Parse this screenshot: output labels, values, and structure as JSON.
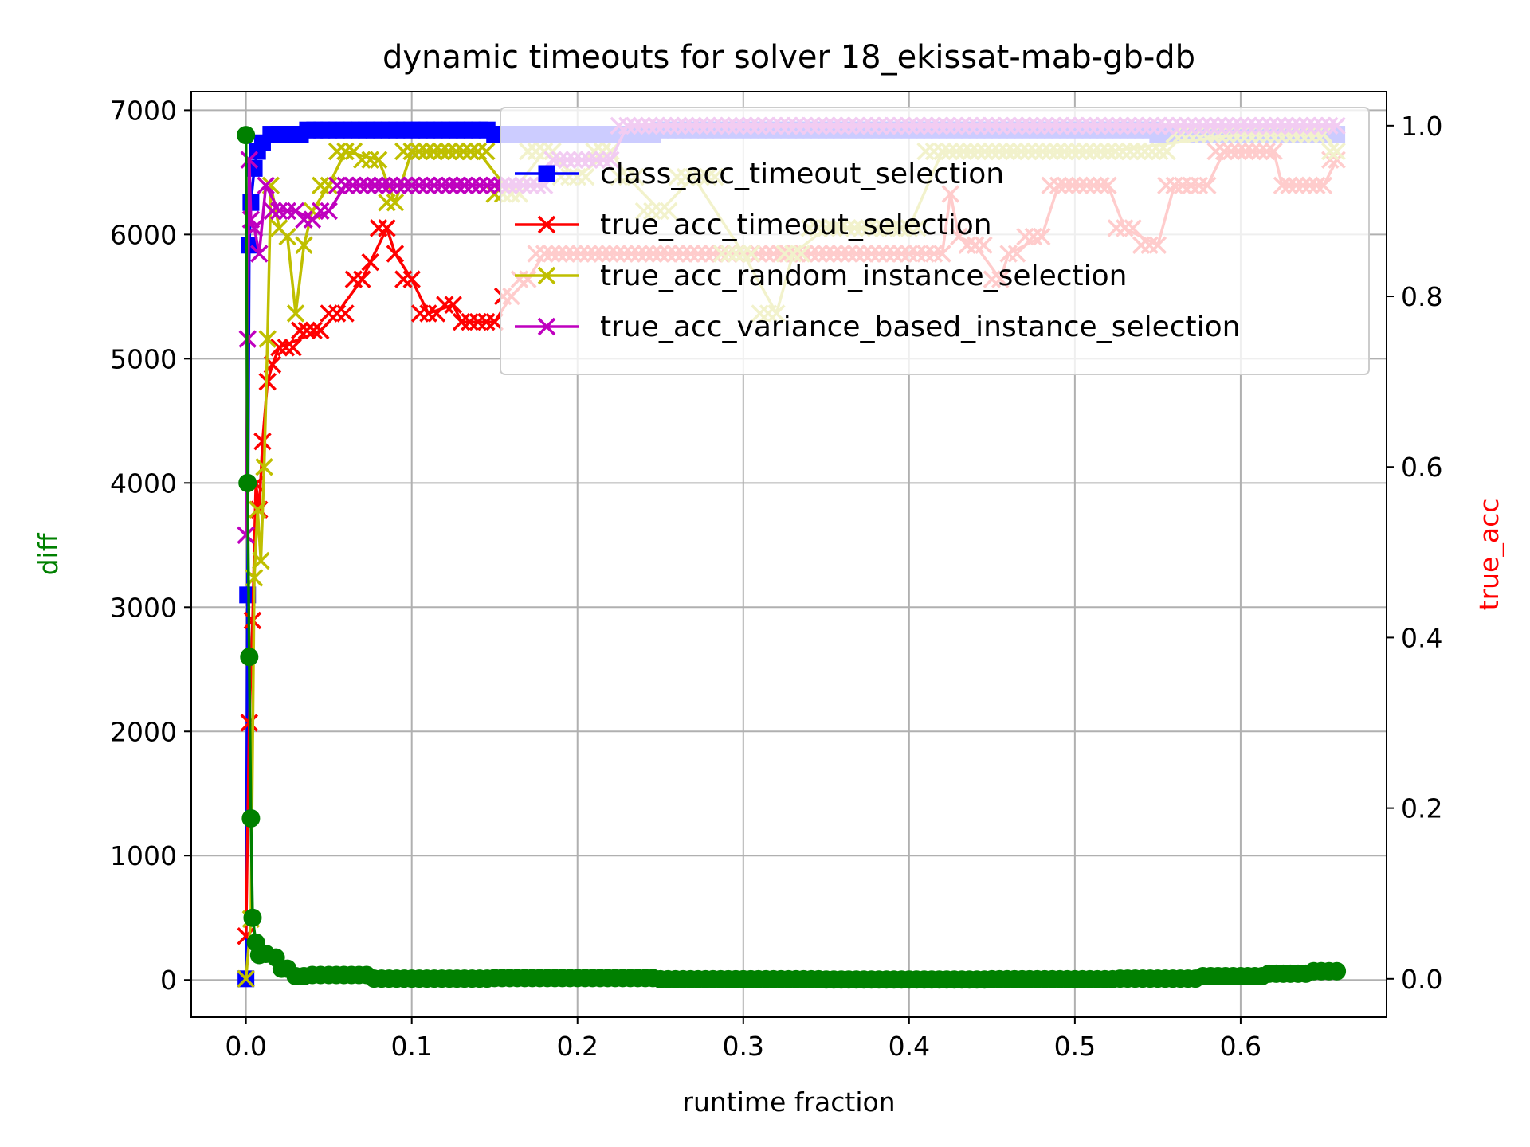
{
  "chart_data": {
    "type": "line",
    "title": "dynamic timeouts for solver 18_ekissat-mab-gb-db",
    "xlabel": "runtime fraction",
    "ylabel_left": "diff",
    "ylabel_right": "true_acc",
    "xlim": [
      -0.033,
      0.688
    ],
    "ylim_left": [
      -300,
      7150
    ],
    "ylim_right": [
      -0.045,
      1.04
    ],
    "xticks": [
      "0.0",
      "0.1",
      "0.2",
      "0.3",
      "0.4",
      "0.5",
      "0.6"
    ],
    "xtick_values": [
      0,
      0.1,
      0.2,
      0.3,
      0.4,
      0.5,
      0.6
    ],
    "yticks_left": [
      "0",
      "1000",
      "2000",
      "3000",
      "4000",
      "5000",
      "6000",
      "7000"
    ],
    "ytick_values_left": [
      0,
      1000,
      2000,
      3000,
      4000,
      5000,
      6000,
      7000
    ],
    "yticks_right": [
      "0.0",
      "0.2",
      "0.4",
      "0.6",
      "0.8",
      "1.0"
    ],
    "ytick_values_right": [
      0,
      0.2,
      0.4,
      0.6,
      0.8,
      1.0
    ],
    "grid": true,
    "legend_position": "upper-right",
    "legend": [
      "class_acc_timeout_selection",
      "true_acc_timeout_selection",
      "true_acc_random_instance_selection",
      "true_acc_variance_based_instance_selection"
    ],
    "series": [
      {
        "name": "class_acc_timeout_selection",
        "axis": "right",
        "color": "#0000ff",
        "marker": "square",
        "points": [
          [
            0,
            0
          ],
          [
            0.001,
            0.45
          ],
          [
            0.002,
            0.86
          ],
          [
            0.003,
            0.91
          ],
          [
            0.005,
            0.95
          ],
          [
            0.007,
            0.97
          ],
          [
            0.01,
            0.98
          ],
          [
            0.02,
            0.99
          ],
          [
            0.05,
            0.995
          ],
          [
            0.1,
            0.995
          ],
          [
            0.2,
            0.99
          ],
          [
            0.3,
            0.995
          ],
          [
            0.4,
            0.995
          ],
          [
            0.5,
            0.995
          ],
          [
            0.6,
            0.99
          ],
          [
            0.658,
            0.99
          ]
        ]
      },
      {
        "name": "true_acc_timeout_selection",
        "axis": "right",
        "color": "#ff0000",
        "marker": "x",
        "points": [
          [
            0,
            0.05
          ],
          [
            0.002,
            0.3
          ],
          [
            0.004,
            0.42
          ],
          [
            0.006,
            0.58
          ],
          [
            0.008,
            0.55
          ],
          [
            0.01,
            0.63
          ],
          [
            0.013,
            0.7
          ],
          [
            0.016,
            0.72
          ],
          [
            0.02,
            0.74
          ],
          [
            0.045,
            0.76
          ],
          [
            0.055,
            0.78
          ],
          [
            0.07,
            0.82
          ],
          [
            0.075,
            0.84
          ],
          [
            0.085,
            0.88
          ],
          [
            0.09,
            0.85
          ],
          [
            0.1,
            0.82
          ],
          [
            0.11,
            0.78
          ],
          [
            0.125,
            0.79
          ],
          [
            0.13,
            0.77
          ],
          [
            0.15,
            0.77
          ],
          [
            0.16,
            0.8
          ],
          [
            0.17,
            0.82
          ],
          [
            0.18,
            0.85
          ],
          [
            0.25,
            0.85
          ],
          [
            0.3,
            0.85
          ],
          [
            0.35,
            0.85
          ],
          [
            0.4,
            0.85
          ],
          [
            0.42,
            0.85
          ],
          [
            0.425,
            0.92
          ],
          [
            0.43,
            0.87
          ],
          [
            0.44,
            0.86
          ],
          [
            0.455,
            0.82
          ],
          [
            0.46,
            0.85
          ],
          [
            0.48,
            0.87
          ],
          [
            0.49,
            0.93
          ],
          [
            0.52,
            0.93
          ],
          [
            0.53,
            0.88
          ],
          [
            0.55,
            0.86
          ],
          [
            0.56,
            0.93
          ],
          [
            0.58,
            0.93
          ],
          [
            0.59,
            0.97
          ],
          [
            0.62,
            0.97
          ],
          [
            0.625,
            0.93
          ],
          [
            0.65,
            0.93
          ],
          [
            0.658,
            0.96
          ]
        ]
      },
      {
        "name": "true_acc_random_instance_selection",
        "axis": "right",
        "color": "#bfbf00",
        "marker": "x",
        "points": [
          [
            0,
            0
          ],
          [
            0.003,
            0.07
          ],
          [
            0.005,
            0.47
          ],
          [
            0.007,
            0.55
          ],
          [
            0.009,
            0.49
          ],
          [
            0.011,
            0.6
          ],
          [
            0.013,
            0.75
          ],
          [
            0.015,
            0.93
          ],
          [
            0.02,
            0.88
          ],
          [
            0.025,
            0.87
          ],
          [
            0.03,
            0.78
          ],
          [
            0.035,
            0.86
          ],
          [
            0.04,
            0.9
          ],
          [
            0.05,
            0.93
          ],
          [
            0.06,
            0.97
          ],
          [
            0.08,
            0.96
          ],
          [
            0.09,
            0.91
          ],
          [
            0.1,
            0.97
          ],
          [
            0.14,
            0.97
          ],
          [
            0.16,
            0.92
          ],
          [
            0.18,
            0.97
          ],
          [
            0.2,
            0.94
          ],
          [
            0.22,
            0.97
          ],
          [
            0.23,
            0.94
          ],
          [
            0.25,
            0.9
          ],
          [
            0.27,
            0.94
          ],
          [
            0.3,
            0.85
          ],
          [
            0.32,
            0.78
          ],
          [
            0.33,
            0.85
          ],
          [
            0.35,
            0.88
          ],
          [
            0.38,
            0.88
          ],
          [
            0.4,
            0.88
          ],
          [
            0.42,
            0.97
          ],
          [
            0.45,
            0.97
          ],
          [
            0.52,
            0.97
          ],
          [
            0.6,
            0.99
          ],
          [
            0.65,
            0.99
          ],
          [
            0.658,
            0.97
          ]
        ]
      },
      {
        "name": "true_acc_variance_based_instance_selection",
        "axis": "right",
        "color": "#bf00bf",
        "marker": "x",
        "points": [
          [
            0,
            0.52
          ],
          [
            0.001,
            0.75
          ],
          [
            0.002,
            0.96
          ],
          [
            0.003,
            0.89
          ],
          [
            0.005,
            0.88
          ],
          [
            0.008,
            0.85
          ],
          [
            0.012,
            0.93
          ],
          [
            0.02,
            0.9
          ],
          [
            0.03,
            0.9
          ],
          [
            0.04,
            0.89
          ],
          [
            0.05,
            0.9
          ],
          [
            0.06,
            0.93
          ],
          [
            0.1,
            0.93
          ],
          [
            0.15,
            0.93
          ],
          [
            0.18,
            0.93
          ],
          [
            0.185,
            0.96
          ],
          [
            0.22,
            0.96
          ],
          [
            0.23,
            1.0
          ],
          [
            0.3,
            1.0
          ],
          [
            0.4,
            1.0
          ],
          [
            0.5,
            1.0
          ],
          [
            0.6,
            1.0
          ],
          [
            0.658,
            1.0
          ]
        ]
      },
      {
        "name": "diff",
        "axis": "left",
        "color": "#008000",
        "marker": "circle",
        "points": [
          [
            0,
            6800
          ],
          [
            0.001,
            4000
          ],
          [
            0.002,
            2600
          ],
          [
            0.003,
            1300
          ],
          [
            0.004,
            500
          ],
          [
            0.006,
            300
          ],
          [
            0.008,
            200
          ],
          [
            0.012,
            210
          ],
          [
            0.018,
            180
          ],
          [
            0.025,
            90
          ],
          [
            0.03,
            30
          ],
          [
            0.05,
            40
          ],
          [
            0.1,
            10
          ],
          [
            0.2,
            15
          ],
          [
            0.3,
            5
          ],
          [
            0.4,
            3
          ],
          [
            0.5,
            5
          ],
          [
            0.55,
            10
          ],
          [
            0.6,
            30
          ],
          [
            0.63,
            50
          ],
          [
            0.658,
            70
          ]
        ]
      }
    ]
  }
}
